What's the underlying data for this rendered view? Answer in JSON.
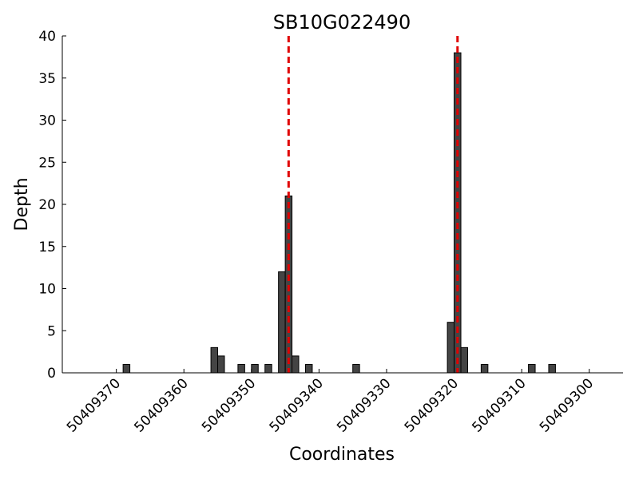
{
  "chart_data": {
    "type": "bar",
    "title": "SB10G022490",
    "x_label": "Coordinates",
    "y_label": "Depth",
    "x": [
      50409369,
      50409356,
      50409355,
      50409352,
      50409350,
      50409348,
      50409346,
      50409345,
      50409344,
      50409342,
      50409335,
      50409321,
      50409320,
      50409319,
      50409316,
      50409309,
      50409306
    ],
    "values": [
      1,
      3,
      2,
      1,
      1,
      1,
      12,
      21,
      2,
      1,
      1,
      6,
      38,
      3,
      1,
      1,
      1
    ],
    "color": "#444444",
    "xlim": [
      50409378,
      50409295
    ],
    "xticks": [
      50409370,
      50409360,
      50409350,
      50409340,
      50409330,
      50409320,
      50409310,
      50409300
    ],
    "ylim": [
      0,
      40
    ],
    "yticks": [
      0,
      5,
      10,
      15,
      20,
      25,
      30,
      35,
      40
    ],
    "vlines": [
      50409344.5,
      50409319.5
    ],
    "vline_color": "#e00000"
  }
}
